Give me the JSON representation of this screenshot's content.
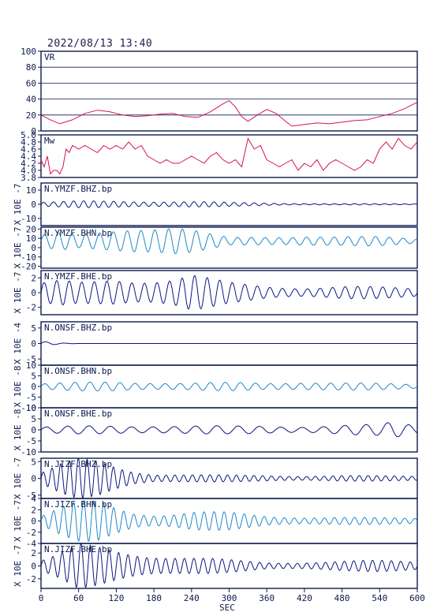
{
  "header": {
    "timestamp": "2022/08/13 13:40"
  },
  "chart_data": {
    "type": "line",
    "xlabel": "SEC",
    "xlim": [
      0,
      600
    ],
    "xticks": [
      "0",
      "60",
      "120",
      "180",
      "240",
      "300",
      "360",
      "420",
      "480",
      "540",
      "600"
    ],
    "colors": {
      "axis": "#0d1a4d",
      "vr": "#d8144f",
      "mw": "#d8144f",
      "dark": "#0b1580",
      "light": "#1e88c8"
    },
    "panels": [
      {
        "id": "vr",
        "label": "VR",
        "ylim": [
          0,
          100
        ],
        "yticks": [
          "0",
          "20",
          "40",
          "60",
          "80",
          "100"
        ],
        "grid": true,
        "series": [
          {
            "color": "vr",
            "x": [
              0,
              15,
              30,
              50,
              70,
              90,
              110,
              130,
              150,
              170,
              190,
              210,
              230,
              250,
              270,
              290,
              300,
              310,
              320,
              330,
              345,
              360,
              375,
              390,
              400,
              420,
              440,
              460,
              480,
              500,
              520,
              540,
              560,
              580,
              600
            ],
            "y": [
              20,
              14,
              9,
              14,
              22,
              26,
              24,
              20,
              18,
              19,
              21,
              22,
              18,
              17,
              24,
              34,
              38,
              30,
              18,
              12,
              20,
              27,
              22,
              12,
              6,
              8,
              10,
              9,
              11,
              13,
              14,
              18,
              22,
              28,
              36
            ]
          }
        ]
      },
      {
        "id": "mw",
        "label": "Mw",
        "ylim": [
          3.8,
          5.0
        ],
        "yticks": [
          "3.8",
          "4.0",
          "4.2",
          "4.4",
          "4.6",
          "4.8",
          "5.0"
        ],
        "grid": false,
        "series": [
          {
            "color": "mw",
            "x": [
              0,
              5,
              10,
              15,
              20,
              25,
              30,
              35,
              40,
              45,
              50,
              60,
              70,
              80,
              90,
              100,
              110,
              120,
              130,
              140,
              150,
              160,
              170,
              180,
              190,
              200,
              210,
              220,
              230,
              240,
              250,
              260,
              270,
              280,
              290,
              300,
              310,
              320,
              330,
              340,
              350,
              360,
              370,
              380,
              390,
              400,
              410,
              420,
              430,
              440,
              450,
              460,
              470,
              480,
              490,
              500,
              510,
              520,
              530,
              540,
              550,
              560,
              570,
              580,
              590,
              600
            ],
            "y": [
              4.3,
              4.1,
              4.4,
              3.9,
              4.0,
              4.0,
              3.9,
              4.1,
              4.6,
              4.5,
              4.7,
              4.6,
              4.7,
              4.6,
              4.5,
              4.7,
              4.6,
              4.7,
              4.6,
              4.8,
              4.6,
              4.7,
              4.4,
              4.3,
              4.2,
              4.3,
              4.2,
              4.2,
              4.3,
              4.4,
              4.3,
              4.2,
              4.4,
              4.5,
              4.3,
              4.2,
              4.3,
              4.1,
              4.9,
              4.6,
              4.7,
              4.3,
              4.2,
              4.1,
              4.2,
              4.3,
              4.0,
              4.2,
              4.1,
              4.3,
              4.0,
              4.2,
              4.3,
              4.2,
              4.1,
              4.0,
              4.1,
              4.3,
              4.2,
              4.6,
              4.8,
              4.6,
              4.9,
              4.7,
              4.6,
              4.8
            ]
          }
        ]
      },
      {
        "id": "ymzf-bhz",
        "label": "N.YMZF.BHZ.bp",
        "unit": "X 10E -7",
        "ylim": [
          -15,
          15
        ],
        "yticks": [
          "10",
          "0",
          "-10"
        ],
        "series": [
          {
            "color": "dark",
            "x": [
              0,
              60,
              120,
              180,
              240,
              300,
              360,
              420,
              480,
              540,
              600
            ],
            "amp": [
              1.6,
              2.4,
              2.6,
              2.4,
              2.2,
              1.4,
              1.0,
              0.6,
              0.4,
              0.4,
              0.3
            ],
            "period": 16
          }
        ]
      },
      {
        "id": "ymzf-bhn",
        "label": "N.YMZF.BHN.bp",
        "unit": "X 10E -7",
        "ylim": [
          -22,
          22
        ],
        "yticks": [
          "20",
          "10",
          "0",
          "-10",
          "-20"
        ],
        "series": [
          {
            "color": "light",
            "x": [
              0,
              30,
              60,
              90,
              120,
              150,
              180,
              210,
              240,
              270,
              300,
              360,
              420,
              480,
              540,
              600
            ],
            "amp": [
              8,
              10,
              7,
              9,
              13,
              18,
              20,
              20,
              14,
              8,
              4,
              5,
              7,
              5,
              5,
              3
            ],
            "period": 22,
            "offset": 7
          }
        ]
      },
      {
        "id": "ymzf-bhe",
        "label": "N.YMZF.BHE.bp",
        "unit": "X 10E -7",
        "ylim": [
          -3,
          3
        ],
        "yticks": [
          "2",
          "0",
          "-2"
        ],
        "series": [
          {
            "color": "dark",
            "x": [
              0,
              30,
              60,
              90,
              120,
              150,
              180,
              210,
              240,
              270,
              300,
              360,
              420,
              480,
              540,
              600
            ],
            "amp": [
              1.6,
              1.8,
              1.4,
              1.6,
              2.0,
              2.0,
              2.2,
              2.4,
              2.8,
              2.0,
              1.4,
              1.0,
              0.8,
              0.9,
              0.8,
              0.7
            ],
            "period": 20
          }
        ]
      },
      {
        "id": "onsf-bhz",
        "label": "N.ONSF.BHZ.bp",
        "unit": "X 10E -4",
        "ylim": [
          -7,
          7
        ],
        "yticks": [
          "5",
          "0",
          "-5"
        ],
        "series": [
          {
            "color": "dark",
            "x": [
              0,
              10,
              20,
              30,
              40,
              60,
              600
            ],
            "amp": [
              0.8,
              0.6,
              0.4,
              0.2,
              0.1,
              0.0,
              0.0
            ],
            "period": 30
          }
        ]
      },
      {
        "id": "onsf-bhn",
        "label": "N.ONSF.BHN.bp",
        "unit": "X 10E -8",
        "ylim": [
          -10,
          10
        ],
        "yticks": [
          "10",
          "5",
          "0",
          "-5",
          "-10"
        ],
        "series": [
          {
            "color": "light",
            "x": [
              0,
              60,
              120,
              180,
              240,
              300,
              360,
              420,
              480,
              540,
              600
            ],
            "amp": [
              1.5,
              2.0,
              2.5,
              2.2,
              1.8,
              2.0,
              1.8,
              2.5,
              1.8,
              1.5,
              1.2
            ],
            "period": 24
          }
        ]
      },
      {
        "id": "onsf-bhe",
        "label": "N.ONSF.BHE.bp",
        "unit": "X 10E -8",
        "ylim": [
          -10,
          10
        ],
        "yticks": [
          "10",
          "5",
          "0",
          "-5",
          "-10"
        ],
        "series": [
          {
            "color": "dark",
            "x": [
              0,
              60,
              120,
              180,
              240,
              300,
              360,
              420,
              480,
              540,
              560,
              600
            ],
            "amp": [
              1.5,
              1.8,
              2.0,
              2.2,
              2.0,
              1.8,
              2.0,
              1.8,
              2.2,
              2.5,
              4.0,
              2.5
            ],
            "period": 34
          }
        ]
      },
      {
        "id": "jizf-bhz",
        "label": "N.JIZF.BHZ.bp",
        "unit": "X 10E -7",
        "ylim": [
          -6,
          6
        ],
        "yticks": [
          "5",
          "0",
          "-5"
        ],
        "series": [
          {
            "color": "dark",
            "x": [
              0,
              30,
              60,
              90,
              120,
              150,
              180,
              240,
              300,
              360,
              420,
              480,
              540,
              600
            ],
            "amp": [
              2.0,
              4.5,
              6.0,
              5.5,
              4.0,
              2.5,
              1.6,
              1.2,
              1.0,
              1.0,
              0.9,
              0.9,
              0.8,
              0.8
            ],
            "period": 14
          }
        ]
      },
      {
        "id": "jizf-bhn",
        "label": "N.JIZF.BHN.bp",
        "unit": "X 10E -7",
        "ylim": [
          -4,
          4
        ],
        "yticks": [
          "4",
          "2",
          "0",
          "-2",
          "-4"
        ],
        "series": [
          {
            "color": "light",
            "x": [
              0,
              30,
              60,
              90,
              120,
              150,
              180,
              210,
              240,
              300,
              360,
              420,
              480,
              540,
              600
            ],
            "amp": [
              1.0,
              2.5,
              3.6,
              3.8,
              2.8,
              1.8,
              1.4,
              1.5,
              1.8,
              1.6,
              1.0,
              0.8,
              0.7,
              0.6,
              0.6
            ],
            "period": 16
          }
        ]
      },
      {
        "id": "jizf-bhe",
        "label": "N.JIZF.BHE.bp",
        "unit": "X 10E -7",
        "ylim": [
          -3.5,
          3.5
        ],
        "yticks": [
          "2",
          "0",
          "-2"
        ],
        "series": [
          {
            "color": "dark",
            "x": [
              0,
              30,
              60,
              90,
              120,
              150,
              180,
              240,
              300,
              360,
              420,
              480,
              540,
              600
            ],
            "amp": [
              1.0,
              2.0,
              3.5,
              3.2,
              2.8,
              2.4,
              2.0,
              1.4,
              1.0,
              0.6,
              0.7,
              0.8,
              0.9,
              0.8
            ],
            "period": 15
          }
        ]
      }
    ]
  }
}
